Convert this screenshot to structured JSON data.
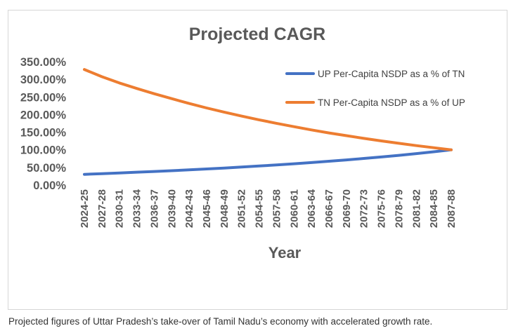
{
  "caption": "Projected figures of Uttar Pradesh’s take-over of Tamil Nadu’s economy with accelerated growth rate.",
  "colors": {
    "up_series": "#4472C4",
    "tn_series": "#ED7D31",
    "text": "#595959",
    "frame_border": "#d6d6d6"
  },
  "chart_data": {
    "type": "line",
    "title": "Projected CAGR",
    "xlabel": "Year",
    "ylabel": "",
    "yticks": [
      "0.00%",
      "50.00%",
      "100.00%",
      "150.00%",
      "200.00%",
      "250.00%",
      "300.00%",
      "350.00%"
    ],
    "ylim": [
      0,
      350
    ],
    "grid": false,
    "legend_position": "top-right",
    "xtick_labels": [
      "2024-25",
      "2027-28",
      "2030-31",
      "2033-34",
      "2036-37",
      "2039-40",
      "2042-43",
      "2045-46",
      "2048-49",
      "2051-52",
      "2054-55",
      "2057-58",
      "2060-61",
      "2063-64",
      "2066-67",
      "2069-70",
      "2072-73",
      "2075-76",
      "2078-79",
      "2081-82",
      "2084-85",
      "2087-88"
    ],
    "x": [
      "2024-25",
      "2027-28",
      "2030-31",
      "2033-34",
      "2036-37",
      "2039-40",
      "2042-43",
      "2045-46",
      "2048-49",
      "2051-52",
      "2054-55",
      "2057-58",
      "2060-61",
      "2063-64",
      "2066-67",
      "2069-70",
      "2072-73",
      "2075-76",
      "2078-79",
      "2081-82",
      "2084-85",
      "2087-88"
    ],
    "series": [
      {
        "name": "UP Per-Capita NSDP as a % of TN",
        "color": "#4472C4",
        "values": [
          30.5,
          32.5,
          34.5,
          36.5,
          38.6,
          40.8,
          43.2,
          45.7,
          48.3,
          51.1,
          54.0,
          57.1,
          60.4,
          63.9,
          67.6,
          71.4,
          75.5,
          79.8,
          84.4,
          89.3,
          94.4,
          100
        ]
      },
      {
        "name": "TN Per-Capita NSDP as a % of UP",
        "color": "#ED7D31",
        "values": [
          328,
          307.5,
          289.8,
          274,
          259.1,
          245.1,
          231.5,
          218.8,
          207,
          195.7,
          185.2,
          175.1,
          165.6,
          156.5,
          147.9,
          140.1,
          132.5,
          125.3,
          118.5,
          112,
          105.9,
          100
        ]
      }
    ]
  }
}
